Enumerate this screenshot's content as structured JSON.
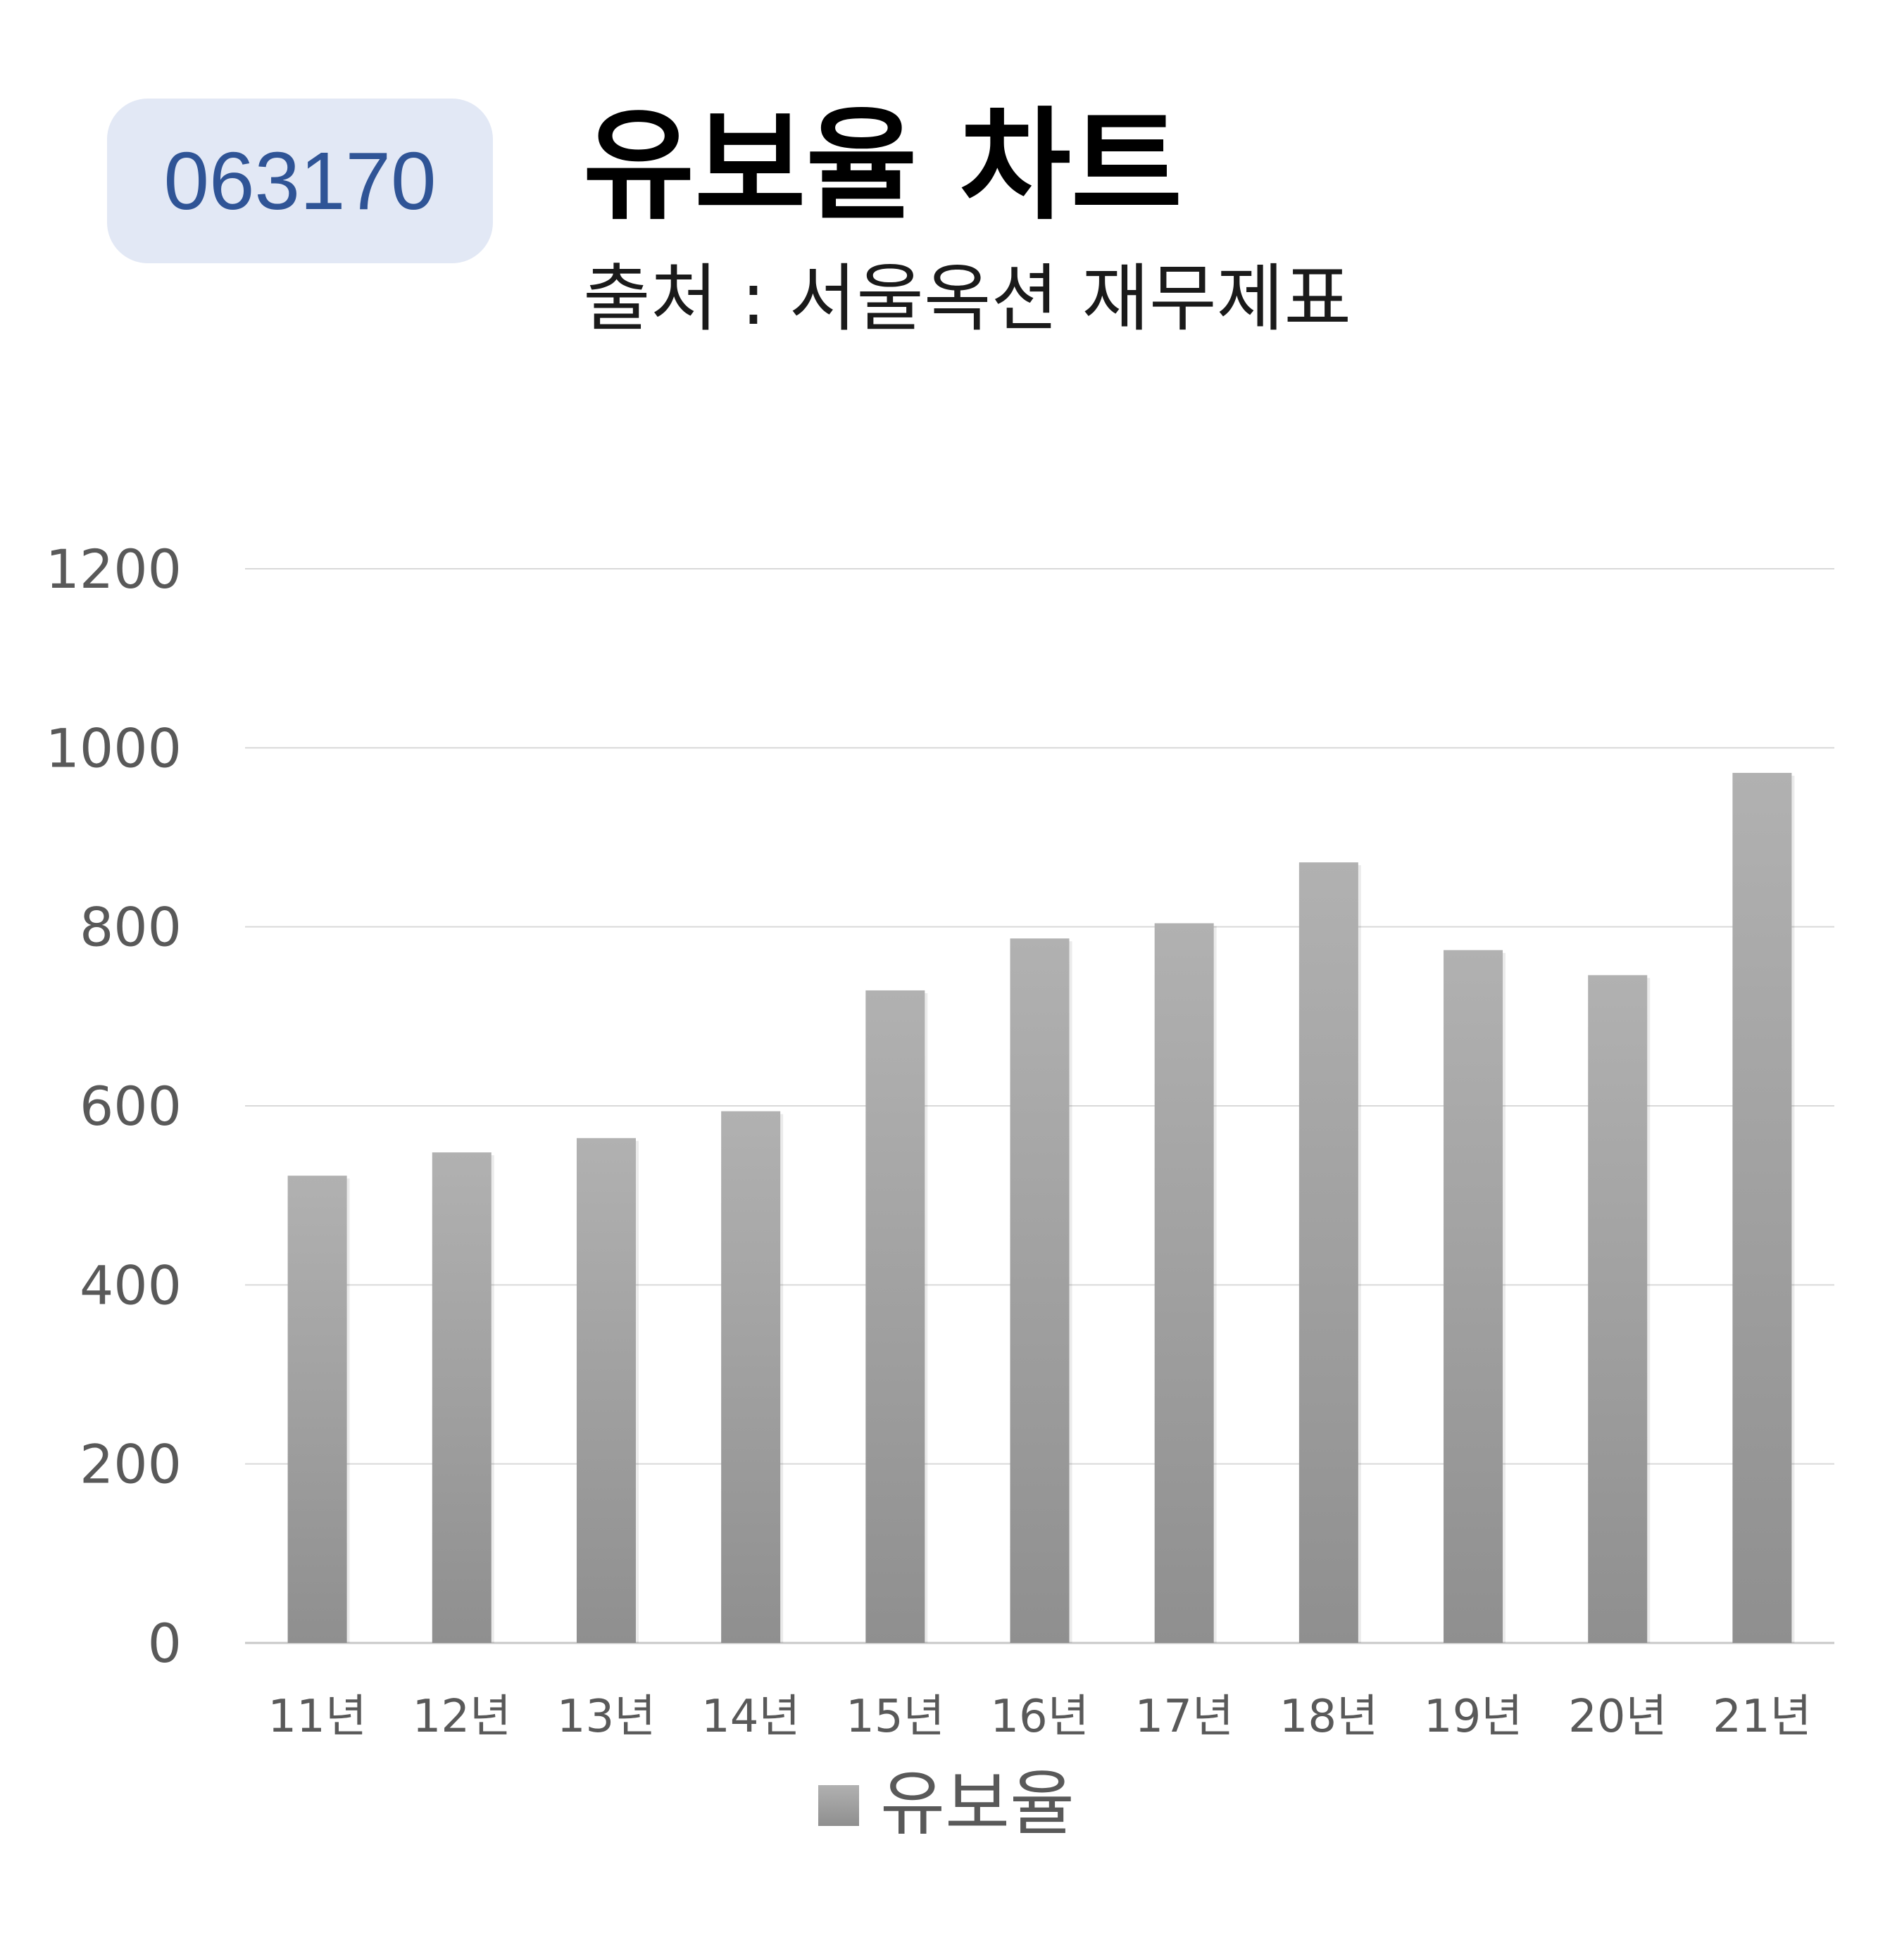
{
  "badge": {
    "code": "063170"
  },
  "header": {
    "title": "유보율 차트",
    "subtitle": "출처 : 서울옥션 재무제표"
  },
  "colors": {
    "badge_bg": "#e2e8f5",
    "badge_text": "#2f5496",
    "bar_top": "#b1b1b1",
    "bar_bottom": "#8f8f8f",
    "grid": "#d9d9d9"
  },
  "chart_data": {
    "type": "bar",
    "title": "유보율 차트",
    "subtitle": "출처 : 서울옥션 재무제표",
    "categories": [
      "11년",
      "12년",
      "13년",
      "14년",
      "15년",
      "16년",
      "17년",
      "18년",
      "19년",
      "20년",
      "21년"
    ],
    "series": [
      {
        "name": "유보율",
        "values": [
          522,
          548,
          564,
          594,
          729,
          787,
          804,
          872,
          774,
          746,
          972
        ]
      }
    ],
    "ylim": [
      0,
      1200
    ],
    "yticks": [
      0,
      200,
      400,
      600,
      800,
      1000,
      1200
    ],
    "xlabel": "",
    "ylabel": "",
    "grid": true,
    "legend": "bottom"
  }
}
